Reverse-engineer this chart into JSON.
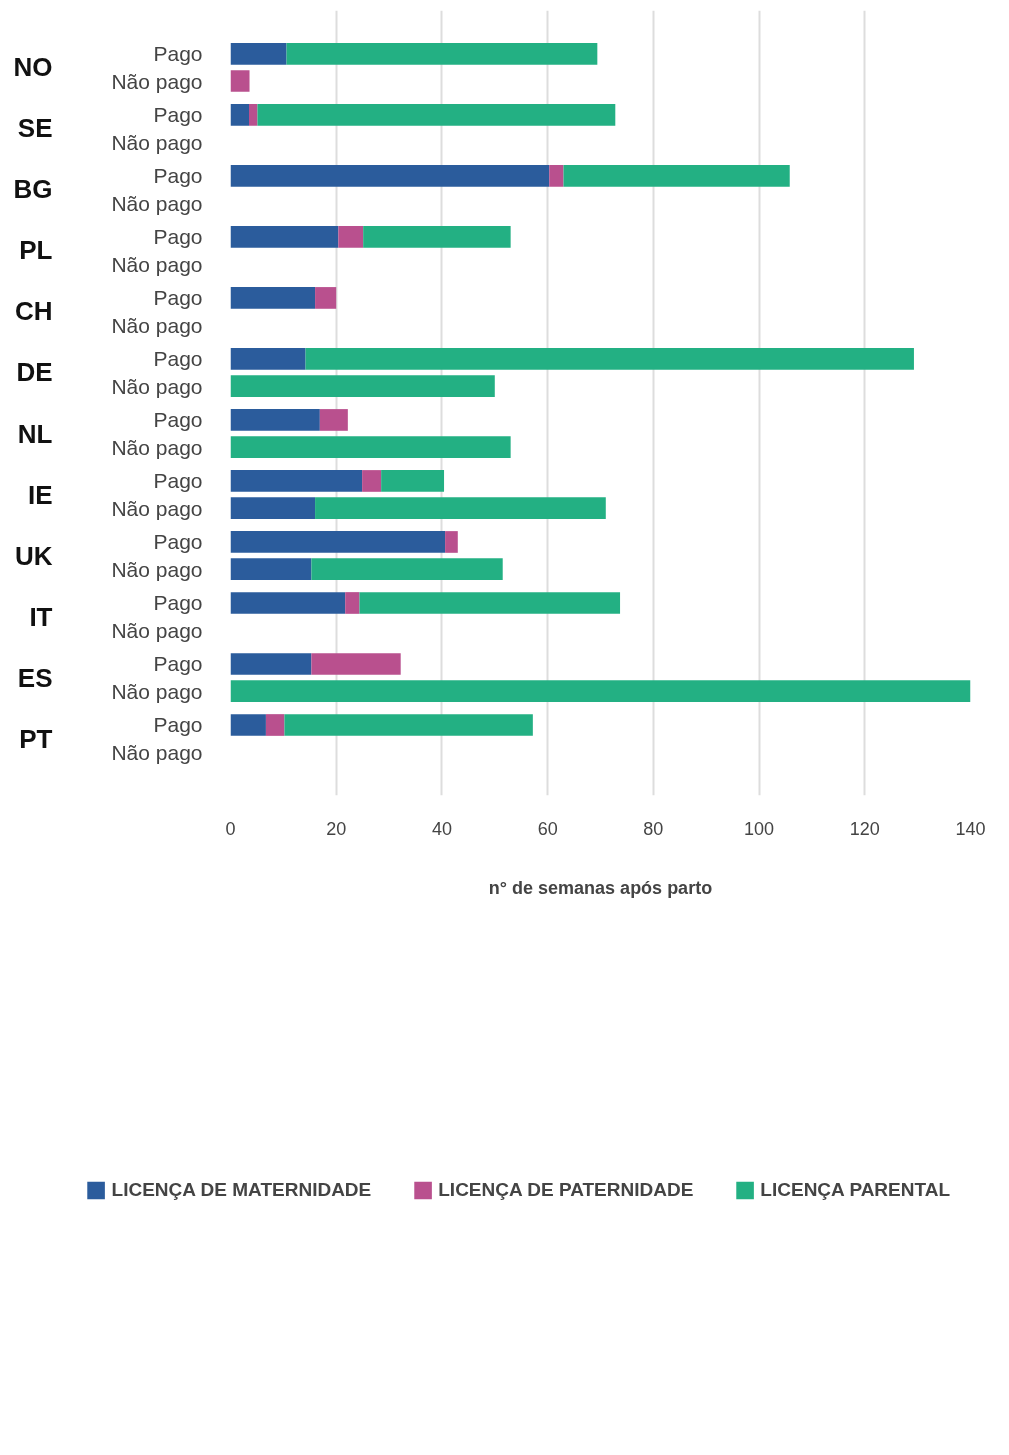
{
  "chart_data": {
    "type": "bar",
    "orientation": "horizontal",
    "stacked": true,
    "xlabel": "n° de semanas após parto",
    "categories": [
      "Pago",
      "Não pago",
      "Pago",
      "Não pago",
      "Pago",
      "Não pago",
      "Pago",
      "Não pago",
      "Pago",
      "Não pago",
      "Pago",
      "Não pago",
      "Pago",
      "Não pago",
      "Pago",
      "Não pago",
      "Pago",
      "Não pago",
      "Pago",
      "Não pago",
      "Pago",
      "Não pago",
      "Pago",
      "Não pago"
    ],
    "annotations": [
      "NO",
      "SE",
      "BG",
      "PL",
      "CH",
      "DE",
      "NL",
      "IE",
      "UK",
      "IT",
      "ES",
      "PT"
    ],
    "series": [
      {
        "name": "LICENÇA DE MATERNIDADE",
        "color": "#2b5c9c",
        "values": [
          10.6,
          null,
          3.5,
          null,
          60.3,
          null,
          20.4,
          null,
          16,
          null,
          14.2,
          null,
          16.9,
          null,
          24.9,
          16,
          40.6,
          15.3,
          21.7,
          null,
          15.3,
          null,
          6.7,
          null
        ]
      },
      {
        "name": "LICENÇA DE PATERNIDADE",
        "color": "#b9508e",
        "values": [
          null,
          3.6,
          1.6,
          null,
          2.7,
          null,
          4.7,
          null,
          4,
          null,
          null,
          null,
          5.3,
          null,
          3.6,
          null,
          2.4,
          null,
          2.7,
          null,
          16.9,
          null,
          3.5,
          null
        ]
      },
      {
        "name": "LICENÇA PARENTAL",
        "color": "#23b083",
        "values": [
          58.8,
          null,
          67.7,
          null,
          42.8,
          null,
          27.9,
          null,
          null,
          null,
          115.1,
          50,
          null,
          53,
          11.9,
          55,
          null,
          36.2,
          49.3,
          null,
          null,
          140,
          47,
          null
        ]
      }
    ],
    "xlim": [
      0,
      140
    ],
    "xticks": [
      0,
      20,
      40,
      60,
      80,
      100,
      120,
      140
    ],
    "grid": "x",
    "legend": "bottom"
  }
}
